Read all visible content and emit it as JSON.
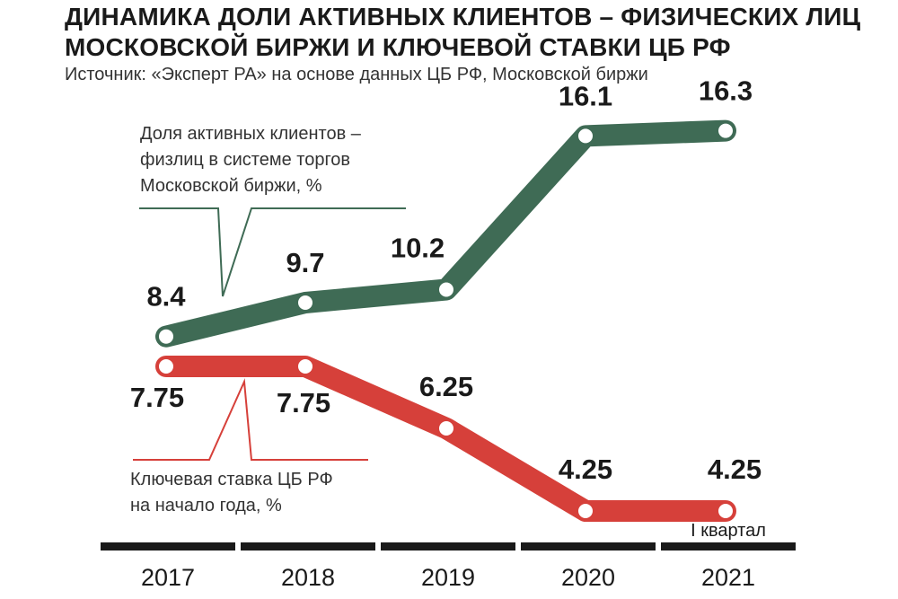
{
  "title": {
    "line1": "ДИНАМИКА ДОЛИ АКТИВНЫХ КЛИЕНТОВ – ФИЗИЧЕСКИХ ЛИЦ",
    "line2": "МОСКОВСКОЙ БИРЖИ И КЛЮЧЕВОЙ СТАВКИ ЦБ РФ"
  },
  "subtitle": "Источник: «Эксперт РА» на основе данных ЦБ РФ, Московской биржи",
  "colors": {
    "green": "#3f6b55",
    "red": "#d6403a",
    "axis": "#1a1a1a"
  },
  "chart_data": {
    "type": "line",
    "categories": [
      "2017",
      "2018",
      "2019",
      "2020",
      "2021"
    ],
    "category_note": "I квартал",
    "series": [
      {
        "name_lines": [
          "Доля активных клиентов –",
          "физлиц в системе торгов",
          "Московской биржи, %"
        ],
        "values": [
          8.4,
          9.7,
          10.2,
          16.1,
          16.3
        ],
        "labels": [
          "8.4",
          "9.7",
          "10.2",
          "16.1",
          "16.3"
        ]
      },
      {
        "name_lines": [
          "Ключевая ставка ЦБ РФ",
          "на начало года, %"
        ],
        "values": [
          7.75,
          7.75,
          6.25,
          4.25,
          4.25
        ],
        "labels": [
          "7.75",
          "7.75",
          "6.25",
          "4.25",
          "4.25"
        ]
      }
    ]
  }
}
